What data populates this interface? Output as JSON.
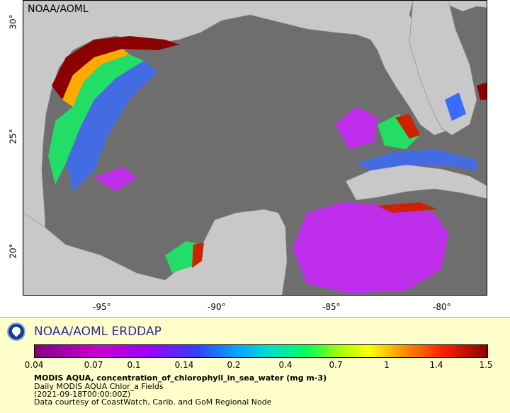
{
  "map": {
    "watermark": "NOAA/AOML",
    "lat_ticks": [
      "30°",
      "25°",
      "20°"
    ],
    "lon_ticks": [
      "-95°",
      "-90°",
      "-85°",
      "-80°"
    ]
  },
  "legend": {
    "title": "NOAA/AOML ERDDAP",
    "colorbar_labels": [
      "0.04",
      "0.07",
      "0.1",
      "0.14",
      "0.2",
      "0.4",
      "0.7",
      "1",
      "1.4",
      "1.5"
    ],
    "variable": "MODIS AQUA, concentration_of_chlorophyll_in_sea_water (mg m-3)",
    "dataset": "Daily MODIS AQUA Chlor_a Fields",
    "time": "(2021-09-18T00:00:00Z)",
    "credit": "Data courtesy of CoastWatch, Carib. and GoM Regional Node"
  },
  "colors": {
    "land": "#c8c8c8",
    "ocean_no_data": "#6e6e6e",
    "legend_bg": "#ffffcc",
    "title_color": "#2b2b96"
  },
  "icons": {
    "logo": "noaa-logo-icon"
  }
}
